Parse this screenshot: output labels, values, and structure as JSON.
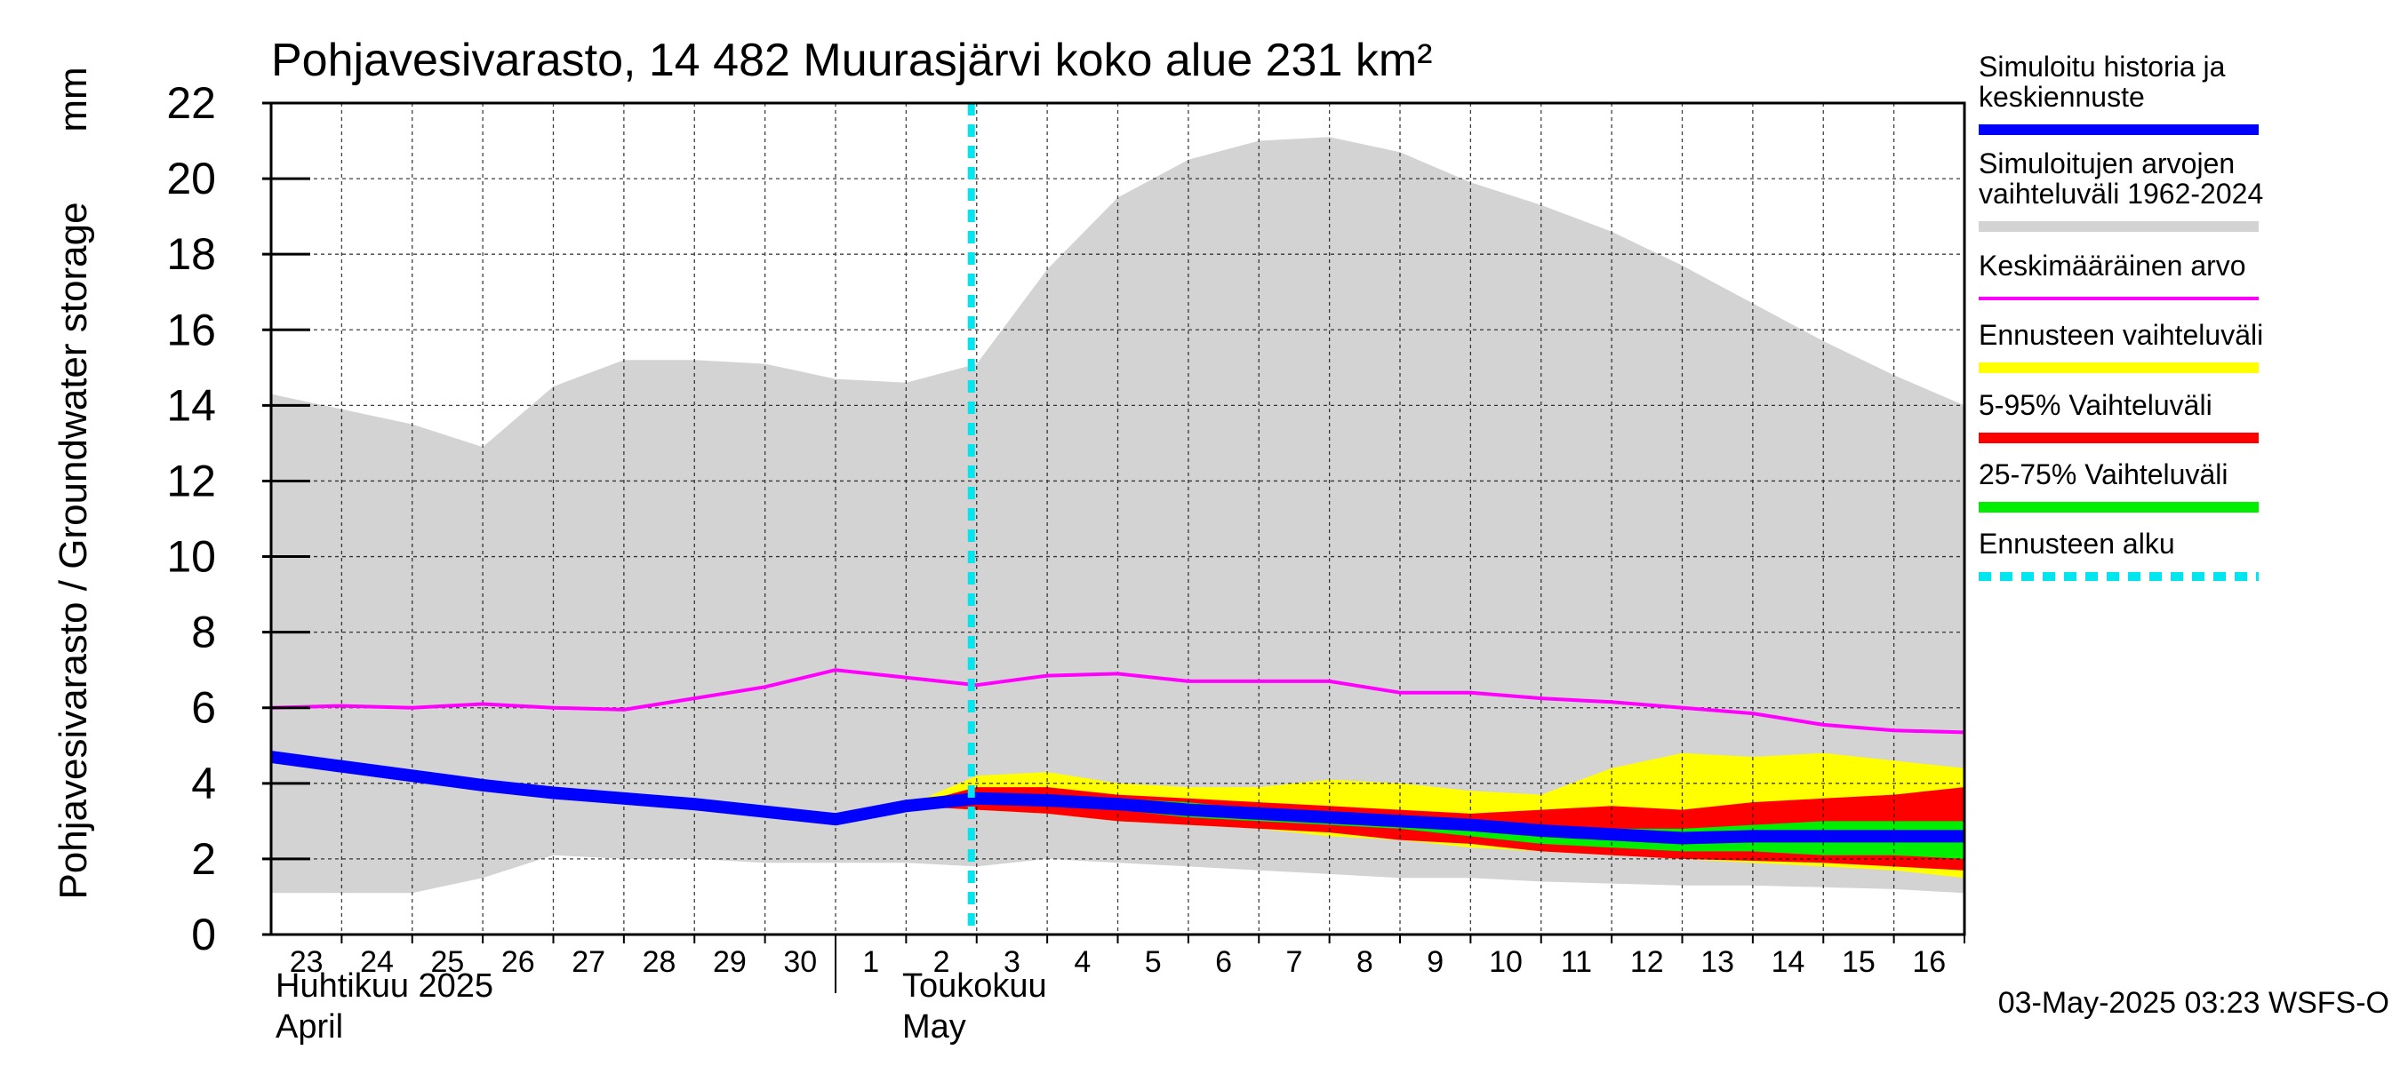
{
  "chart_data": {
    "type": "area",
    "title": "Pohjavesivarasto, 14 482 Muurasjärvi koko alue 231 km²",
    "ylabel": "Pohjavesivarasto / Groundwater storage",
    "yunit": "mm",
    "ylim": [
      0,
      22
    ],
    "yticks": [
      0,
      2,
      4,
      6,
      8,
      10,
      12,
      14,
      16,
      18,
      20,
      22
    ],
    "x_day_labels": [
      "23",
      "24",
      "25",
      "26",
      "27",
      "28",
      "29",
      "30",
      "1",
      "2",
      "3",
      "4",
      "5",
      "6",
      "7",
      "8",
      "9",
      "10",
      "11",
      "12",
      "13",
      "14",
      "15",
      "16"
    ],
    "month_labels": [
      {
        "fi": "Huhtikuu  2025",
        "en": "April"
      },
      {
        "fi": "Toukokuu",
        "en": "May"
      }
    ],
    "x_dates": [
      "2025-04-23",
      "2025-04-24",
      "2025-04-25",
      "2025-04-26",
      "2025-04-27",
      "2025-04-28",
      "2025-04-29",
      "2025-04-30",
      "2025-05-01",
      "2025-05-02",
      "2025-05-03",
      "2025-05-04",
      "2025-05-05",
      "2025-05-06",
      "2025-05-07",
      "2025-05-08",
      "2025-05-09",
      "2025-05-10",
      "2025-05-11",
      "2025-05-12",
      "2025-05-13",
      "2025-05-14",
      "2025-05-15",
      "2025-05-16",
      "2025-05-17"
    ],
    "forecast_start": "2025-05-03",
    "grid": true,
    "legend_position": "right",
    "series": [
      {
        "name": "Simuloitujen arvojen vaihteluväli 1962-2024",
        "kind": "band",
        "color": "#d3d3d3",
        "x": [
          "2025-04-23",
          "2025-04-24",
          "2025-04-25",
          "2025-04-26",
          "2025-04-27",
          "2025-04-28",
          "2025-04-29",
          "2025-04-30",
          "2025-05-01",
          "2025-05-02",
          "2025-05-03",
          "2025-05-04",
          "2025-05-05",
          "2025-05-06",
          "2025-05-07",
          "2025-05-08",
          "2025-05-09",
          "2025-05-10",
          "2025-05-11",
          "2025-05-12",
          "2025-05-13",
          "2025-05-14",
          "2025-05-15",
          "2025-05-16",
          "2025-05-17"
        ],
        "low": [
          1.1,
          1.1,
          1.1,
          1.5,
          2.1,
          2.0,
          2.0,
          1.9,
          1.9,
          1.9,
          1.8,
          2.0,
          1.9,
          1.8,
          1.7,
          1.6,
          1.5,
          1.5,
          1.4,
          1.35,
          1.3,
          1.3,
          1.25,
          1.2,
          1.1
        ],
        "high": [
          14.3,
          13.9,
          13.5,
          12.9,
          14.5,
          15.2,
          15.2,
          15.1,
          14.7,
          14.6,
          15.1,
          17.6,
          19.5,
          20.5,
          21.0,
          21.1,
          20.7,
          19.9,
          19.3,
          18.6,
          17.7,
          16.7,
          15.7,
          14.8,
          14.0
        ]
      },
      {
        "name": "Ennusteen vaihteluväli",
        "kind": "band",
        "color": "#ffff00",
        "x": [
          "2025-05-02",
          "2025-05-03",
          "2025-05-04",
          "2025-05-05",
          "2025-05-06",
          "2025-05-07",
          "2025-05-08",
          "2025-05-09",
          "2025-05-10",
          "2025-05-11",
          "2025-05-12",
          "2025-05-13",
          "2025-05-14",
          "2025-05-15",
          "2025-05-16",
          "2025-05-17"
        ],
        "low": [
          3.4,
          3.3,
          3.2,
          3.0,
          2.9,
          2.8,
          2.6,
          2.5,
          2.3,
          2.2,
          2.1,
          2.0,
          1.9,
          1.8,
          1.7,
          1.5
        ],
        "high": [
          3.4,
          4.2,
          4.3,
          4.0,
          3.9,
          3.9,
          4.1,
          4.0,
          3.8,
          3.7,
          4.4,
          4.8,
          4.7,
          4.8,
          4.6,
          4.4
        ]
      },
      {
        "name": "5-95% Vaihteluväli",
        "kind": "band",
        "color": "#ff0000",
        "x": [
          "2025-05-02",
          "2025-05-03",
          "2025-05-04",
          "2025-05-05",
          "2025-05-06",
          "2025-05-07",
          "2025-05-08",
          "2025-05-09",
          "2025-05-10",
          "2025-05-11",
          "2025-05-12",
          "2025-05-13",
          "2025-05-14",
          "2025-05-15",
          "2025-05-16",
          "2025-05-17"
        ],
        "low": [
          3.4,
          3.3,
          3.2,
          3.0,
          2.9,
          2.8,
          2.7,
          2.5,
          2.4,
          2.2,
          2.1,
          2.0,
          1.95,
          1.9,
          1.8,
          1.7
        ],
        "high": [
          3.4,
          3.9,
          3.9,
          3.7,
          3.6,
          3.5,
          3.4,
          3.3,
          3.2,
          3.3,
          3.4,
          3.3,
          3.5,
          3.6,
          3.7,
          3.9
        ]
      },
      {
        "name": "25-75% Vaihteluväli",
        "kind": "band",
        "color": "#00ee00",
        "x": [
          "2025-05-02",
          "2025-05-03",
          "2025-05-04",
          "2025-05-05",
          "2025-05-06",
          "2025-05-07",
          "2025-05-08",
          "2025-05-09",
          "2025-05-10",
          "2025-05-11",
          "2025-05-12",
          "2025-05-13",
          "2025-05-14",
          "2025-05-15",
          "2025-05-16",
          "2025-05-17"
        ],
        "low": [
          3.4,
          3.5,
          3.4,
          3.3,
          3.1,
          3.0,
          2.9,
          2.8,
          2.6,
          2.4,
          2.3,
          2.2,
          2.2,
          2.1,
          2.1,
          2.0
        ],
        "high": [
          3.4,
          3.7,
          3.7,
          3.6,
          3.5,
          3.3,
          3.2,
          3.1,
          3.0,
          2.9,
          2.8,
          2.8,
          2.9,
          3.0,
          3.0,
          3.0
        ]
      },
      {
        "name": "Keskimääräinen arvo",
        "kind": "line",
        "color": "#ff00ff",
        "x": [
          "2025-04-23",
          "2025-04-24",
          "2025-04-25",
          "2025-04-26",
          "2025-04-27",
          "2025-04-28",
          "2025-04-29",
          "2025-04-30",
          "2025-05-01",
          "2025-05-02",
          "2025-05-03",
          "2025-05-04",
          "2025-05-05",
          "2025-05-06",
          "2025-05-07",
          "2025-05-08",
          "2025-05-09",
          "2025-05-10",
          "2025-05-11",
          "2025-05-12",
          "2025-05-13",
          "2025-05-14",
          "2025-05-15",
          "2025-05-16",
          "2025-05-17"
        ],
        "y": [
          6.0,
          6.05,
          6.0,
          6.1,
          6.0,
          5.95,
          6.25,
          6.55,
          7.0,
          6.8,
          6.6,
          6.85,
          6.9,
          6.7,
          6.7,
          6.7,
          6.4,
          6.4,
          6.25,
          6.15,
          6.0,
          5.85,
          5.55,
          5.4,
          5.35
        ]
      },
      {
        "name": "Simuloitu historia ja keskiennuste",
        "kind": "line",
        "color": "#0000ff",
        "x": [
          "2025-04-23",
          "2025-04-24",
          "2025-04-25",
          "2025-04-26",
          "2025-04-27",
          "2025-04-28",
          "2025-04-29",
          "2025-04-30",
          "2025-05-01",
          "2025-05-02",
          "2025-05-03",
          "2025-05-04",
          "2025-05-05",
          "2025-05-06",
          "2025-05-07",
          "2025-05-08",
          "2025-05-09",
          "2025-05-10",
          "2025-05-11",
          "2025-05-12",
          "2025-05-13",
          "2025-05-14",
          "2025-05-15",
          "2025-05-16",
          "2025-05-17"
        ],
        "y": [
          4.7,
          4.45,
          4.2,
          3.95,
          3.75,
          3.6,
          3.45,
          3.25,
          3.05,
          3.4,
          3.6,
          3.55,
          3.45,
          3.3,
          3.2,
          3.1,
          3.0,
          2.9,
          2.75,
          2.65,
          2.55,
          2.6,
          2.6,
          2.6,
          2.6
        ]
      }
    ],
    "legend": [
      {
        "label": "Simuloitu historia ja keskiennuste",
        "color": "#0000ff",
        "style": "solid"
      },
      {
        "label": "Simuloitujen arvojen vaihteluväli 1962-2024",
        "color": "#d3d3d3",
        "style": "solid"
      },
      {
        "label": "Keskimääräinen arvo",
        "color": "#ff00ff",
        "style": "thin"
      },
      {
        "label": "Ennusteen vaihteluväli",
        "color": "#ffff00",
        "style": "solid"
      },
      {
        "label": "5-95% Vaihteluväli",
        "color": "#ff0000",
        "style": "solid"
      },
      {
        "label": "25-75% Vaihteluväli",
        "color": "#00ee00",
        "style": "solid"
      },
      {
        "label": "Ennusteen alku",
        "color": "#00e5ee",
        "style": "dashed"
      }
    ],
    "footer": "03-May-2025 03:23 WSFS-O"
  }
}
